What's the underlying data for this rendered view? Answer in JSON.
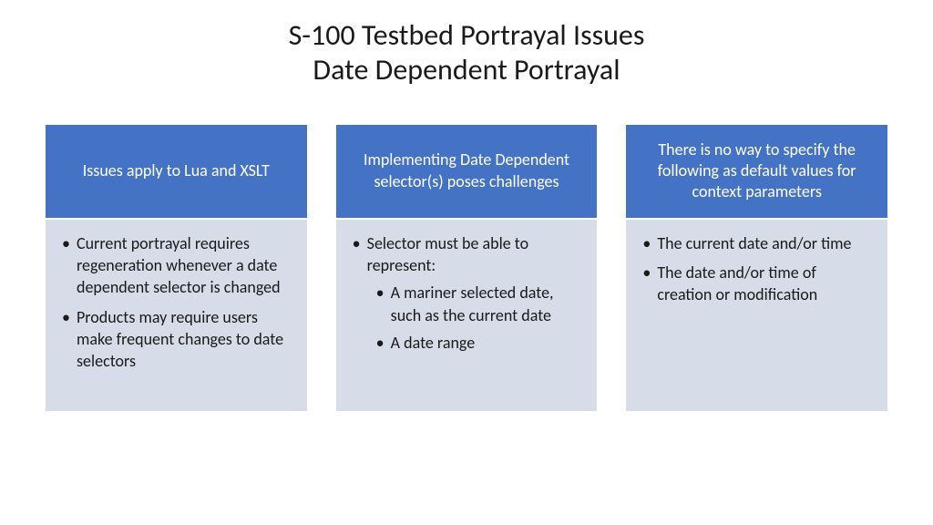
{
  "title": {
    "line1": "S-100 Testbed Portrayal Issues",
    "line2": "Date Dependent Portrayal"
  },
  "colors": {
    "header_bg": "#4472c4",
    "header_text": "#ffffff",
    "body_bg": "#d6dce8",
    "body_text": "#1a1a1a",
    "page_bg": "#ffffff"
  },
  "columns": [
    {
      "header": "Issues apply to Lua and XSLT",
      "bullets": [
        {
          "text": "Current portrayal requires regeneration whenever a date dependent selector is changed"
        },
        {
          "text": "Products may require users make frequent changes to date selectors"
        }
      ]
    },
    {
      "header": "Implementing Date Dependent selector(s) poses challenges",
      "bullets": [
        {
          "text": "Selector must be able to represent:",
          "sub": [
            "A mariner selected date, such as the current date",
            "A date range"
          ]
        }
      ]
    },
    {
      "header": "There is no way to specify the following as default values for context parameters",
      "bullets": [
        {
          "text": "The current date and/or time"
        },
        {
          "text": "The date and/or time of creation or modification"
        }
      ]
    }
  ]
}
